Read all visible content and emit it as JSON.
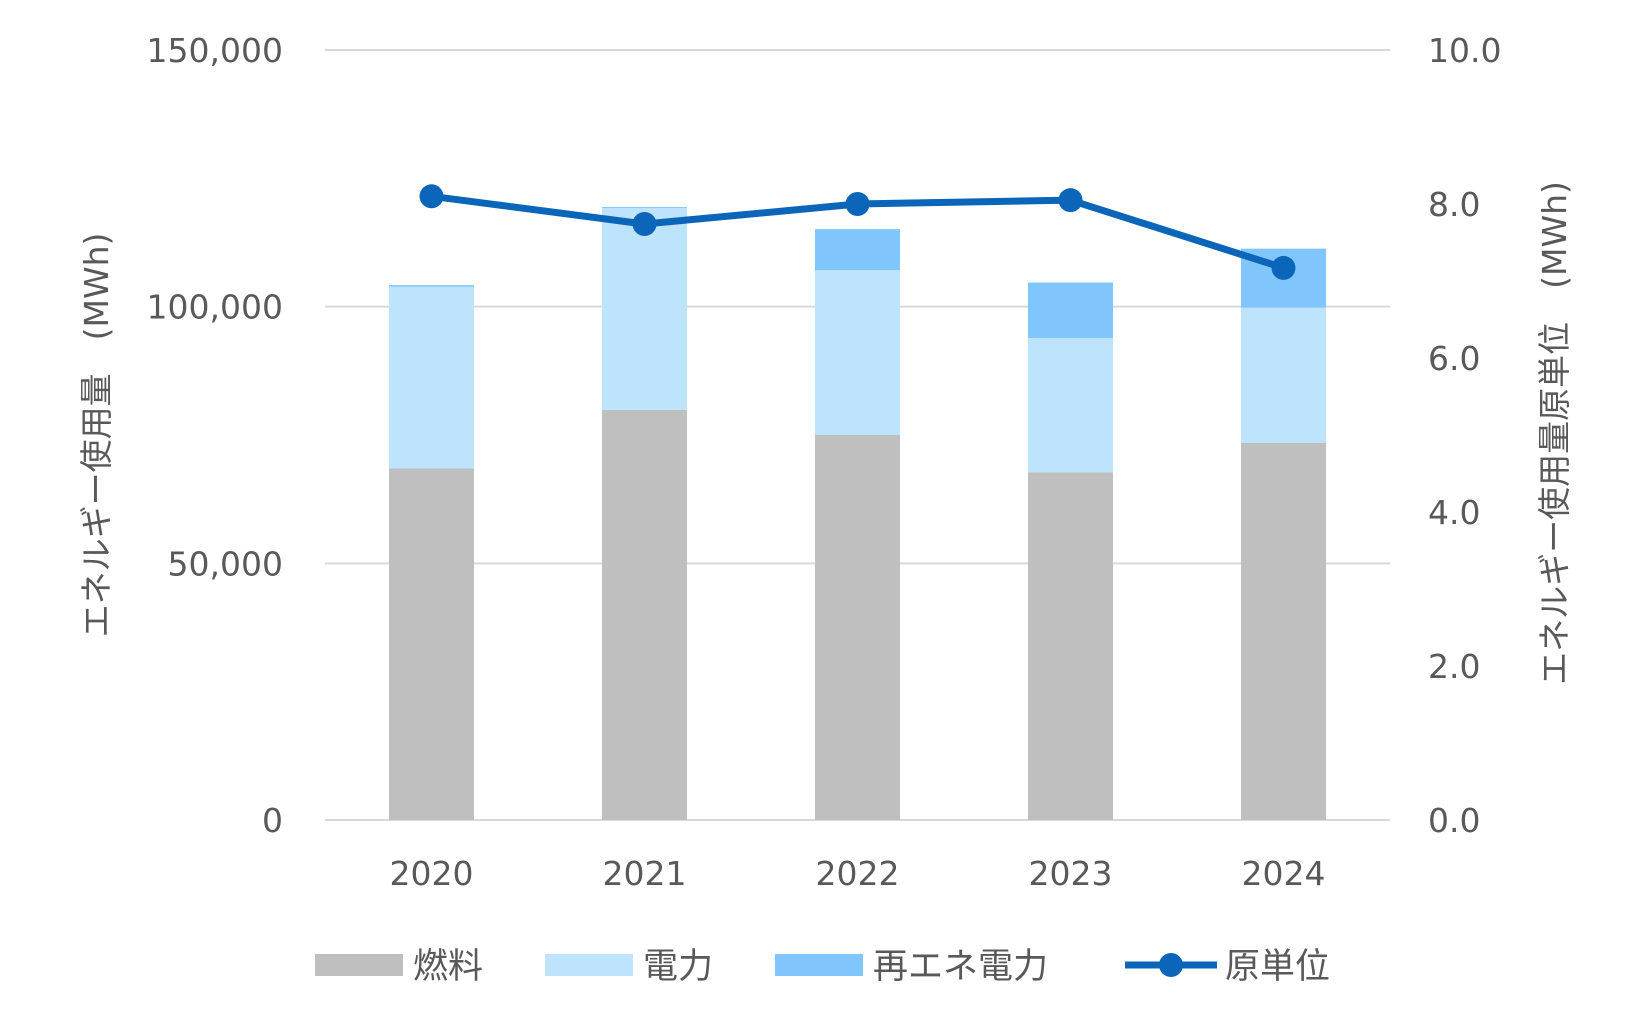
{
  "chart_data": {
    "type": "bar",
    "stacked": true,
    "categories": [
      "2020",
      "2021",
      "2022",
      "2023",
      "2024"
    ],
    "series": [
      {
        "name": "燃料",
        "type": "bar",
        "axis": "left",
        "color": "#bfbfbf",
        "values": [
          68500,
          79900,
          75000,
          67700,
          73500
        ]
      },
      {
        "name": "電力",
        "type": "bar",
        "axis": "left",
        "color": "#bde3fd",
        "values": [
          35400,
          39300,
          32100,
          26200,
          26300
        ]
      },
      {
        "name": "再エネ電力",
        "type": "bar",
        "axis": "left",
        "color": "#80c6fc",
        "values": [
          300,
          200,
          8000,
          10800,
          11500
        ]
      },
      {
        "name": "原単位",
        "type": "line",
        "axis": "right",
        "color": "#0b65b8",
        "values": [
          8.1,
          7.74,
          8.0,
          8.05,
          7.17
        ]
      }
    ],
    "y_left": {
      "label": "エネルギー使用量　(MWh)",
      "ylim": [
        0,
        150000
      ],
      "ticks": [
        "0",
        "50,000",
        "100,000",
        "150,000"
      ],
      "tick_values": [
        0,
        50000,
        100000,
        150000
      ]
    },
    "y_right": {
      "label": "エネルギー使用量原単位　(MWh)",
      "ylim": [
        0,
        10
      ],
      "ticks": [
        "0.0",
        "2.0",
        "4.0",
        "6.0",
        "8.0",
        "10.0"
      ],
      "tick_values": [
        0,
        2,
        4,
        6,
        8,
        10
      ]
    },
    "grid": true,
    "legend_position": "bottom"
  }
}
